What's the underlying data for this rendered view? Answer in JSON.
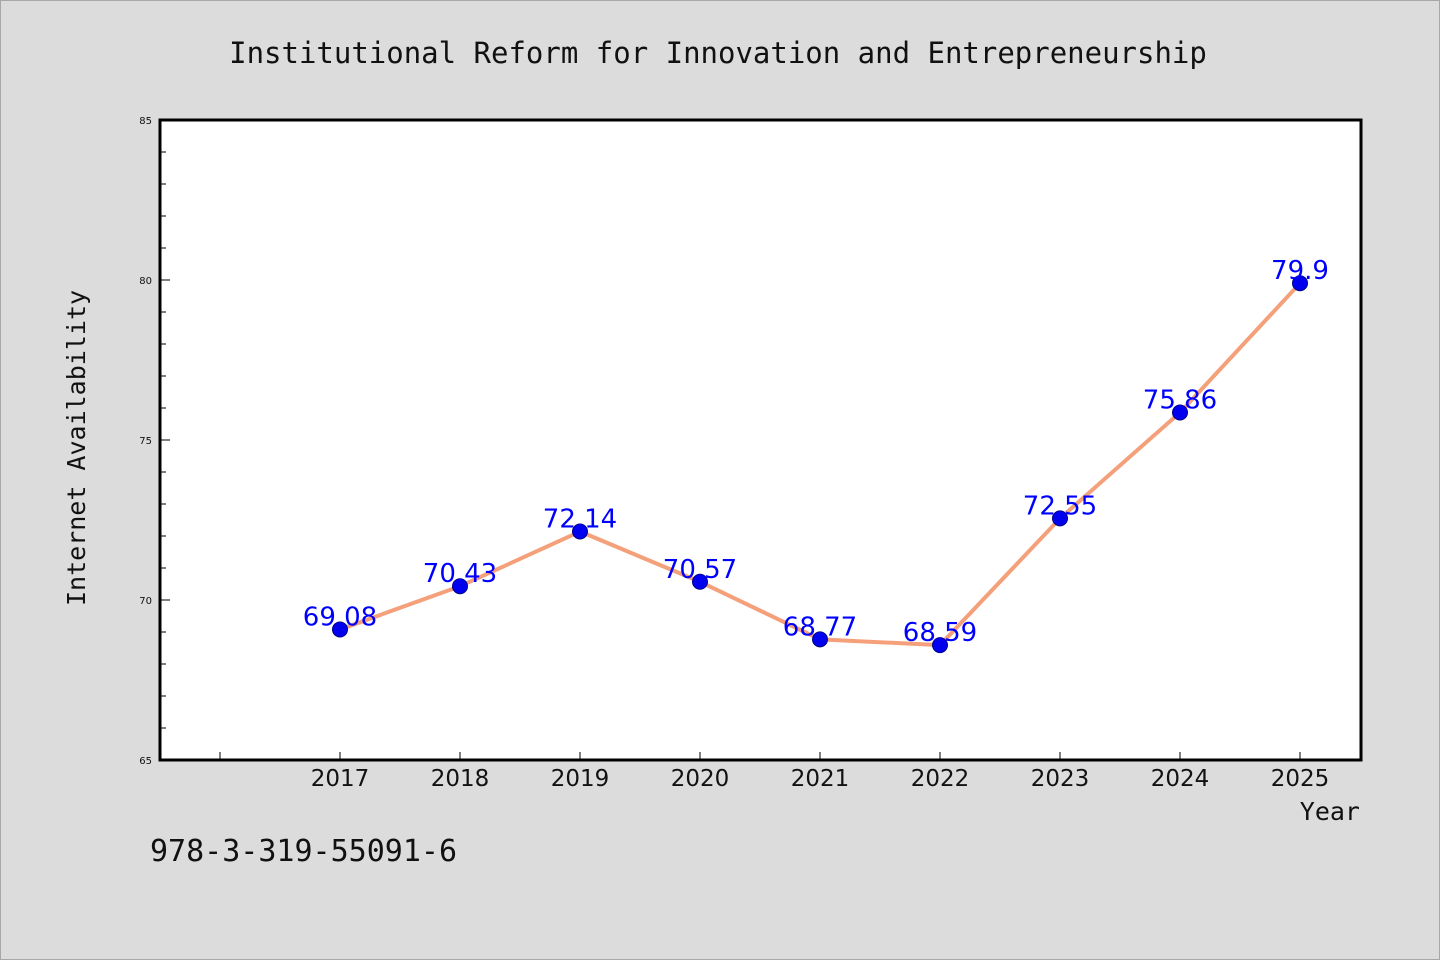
{
  "caption": "978-3-319-55091-6",
  "chart_data": {
    "type": "line",
    "title": "Institutional Reform for Innovation and Entrepreneurship",
    "xlabel": "Year",
    "ylabel": "Internet Availability",
    "x": [
      "2017",
      "2018",
      "2019",
      "2020",
      "2021",
      "2022",
      "2023",
      "2024",
      "2025"
    ],
    "series": [
      {
        "values": [
          69.08,
          70.43,
          72.14,
          70.57,
          68.77,
          68.59,
          72.55,
          75.86,
          79.9
        ],
        "data_labels": [
          "69.08",
          "70.43",
          "72.14",
          "70.57",
          "68.77",
          "68.59",
          "72.55",
          "75.86",
          "79.9"
        ]
      }
    ],
    "ylim": [
      65,
      85
    ],
    "yticks": [
      "65",
      "70",
      "75",
      "80",
      "85"
    ],
    "grid": false,
    "colors": {
      "line": "#f4a07a",
      "marker": "#0000ee",
      "marker_edge": "#00008b",
      "label": "#0000ff"
    }
  }
}
